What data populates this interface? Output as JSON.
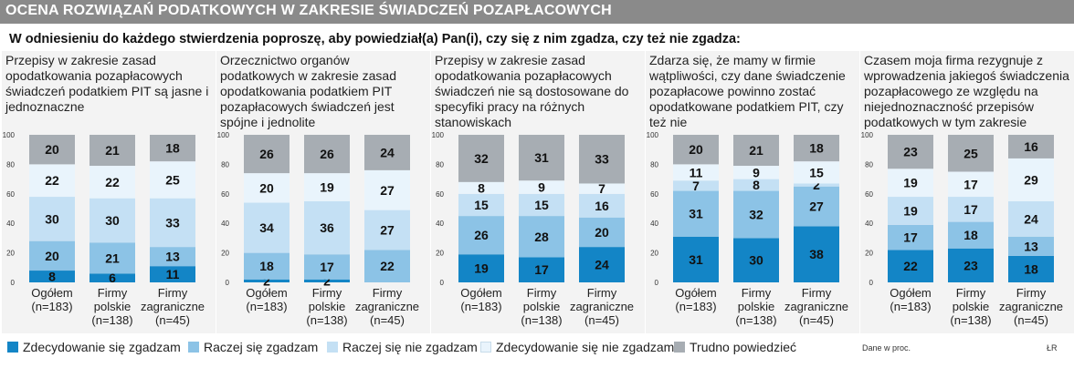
{
  "header": {
    "title": "OCENA ROZWIĄZAŃ PODATKOWYCH W ZAKRESIE ŚWIADCZEŃ POZAPŁACOWYCH",
    "question": "W odniesieniu do każdego stwierdzenia poproszę, aby powiedział(a) Pan(i), czy się z nim zgadza, czy też nie zgadza:"
  },
  "colors": {
    "header_bg": "#8a8a8a",
    "panel_bg": "#f3f3f3",
    "series": [
      "#1385c6",
      "#8cc3e6",
      "#c4e0f4",
      "#e9f4fc",
      "#a7adb3"
    ]
  },
  "legend": {
    "items": [
      "Zdecydowanie się zgadzam",
      "Raczej się zgadzam",
      "Raczej się nie zgadzam",
      "Zdecydowanie się nie zgadzam",
      "Trudno powiedzieć"
    ]
  },
  "footer": {
    "source": "Dane w proc.",
    "credit": "ŁR"
  },
  "chart_data": [
    {
      "type": "bar",
      "stacked": true,
      "title": "Przepisy w zakresie zasad opodatkowania pozapłacowych świadczeń podatkiem PIT są jasne i jednoznaczne",
      "categories": [
        "Ogółem (n=183)",
        "Firmy polskie (n=138)",
        "Firmy zagraniczne (n=45)"
      ],
      "ylim": [
        0,
        100
      ],
      "yticks": [
        0,
        20,
        40,
        60,
        80,
        100
      ],
      "series": [
        {
          "name": "Zdecydowanie się zgadzam",
          "values": [
            8,
            6,
            11
          ]
        },
        {
          "name": "Raczej się zgadzam",
          "values": [
            20,
            21,
            13
          ]
        },
        {
          "name": "Raczej się nie zgadzam",
          "values": [
            30,
            30,
            33
          ]
        },
        {
          "name": "Zdecydowanie się nie zgadzam",
          "values": [
            22,
            22,
            25
          ]
        },
        {
          "name": "Trudno powiedzieć",
          "values": [
            20,
            21,
            18
          ]
        }
      ]
    },
    {
      "type": "bar",
      "stacked": true,
      "title": "Orzecznictwo organów podatkowych w zakresie zasad opodatkowania podatkiem PIT pozapłacowych świadczeń jest spójne i jednolite",
      "categories": [
        "Ogółem (n=183)",
        "Firmy polskie (n=138)",
        "Firmy zagraniczne (n=45)"
      ],
      "ylim": [
        0,
        100
      ],
      "yticks": [
        0,
        20,
        40,
        60,
        80,
        100
      ],
      "series": [
        {
          "name": "Zdecydowanie się zgadzam",
          "values": [
            2,
            2,
            0
          ]
        },
        {
          "name": "Raczej się zgadzam",
          "values": [
            18,
            17,
            22
          ]
        },
        {
          "name": "Raczej się nie zgadzam",
          "values": [
            34,
            36,
            27
          ]
        },
        {
          "name": "Zdecydowanie się nie zgadzam",
          "values": [
            20,
            19,
            27
          ]
        },
        {
          "name": "Trudno powiedzieć",
          "values": [
            26,
            26,
            24
          ]
        }
      ]
    },
    {
      "type": "bar",
      "stacked": true,
      "title": "Przepisy w zakresie zasad opodatkowania pozapłacowych świadczeń nie są dostosowane do specyfiki pracy na różnych stanowiskach",
      "categories": [
        "Ogółem (n=183)",
        "Firmy polskie (n=138)",
        "Firmy zagraniczne (n=45)"
      ],
      "ylim": [
        0,
        100
      ],
      "yticks": [
        0,
        20,
        40,
        60,
        80,
        100
      ],
      "series": [
        {
          "name": "Zdecydowanie się zgadzam",
          "values": [
            19,
            17,
            24
          ]
        },
        {
          "name": "Raczej się zgadzam",
          "values": [
            26,
            28,
            20
          ]
        },
        {
          "name": "Raczej się nie zgadzam",
          "values": [
            15,
            15,
            16
          ]
        },
        {
          "name": "Zdecydowanie się nie zgadzam",
          "values": [
            8,
            9,
            7
          ]
        },
        {
          "name": "Trudno powiedzieć",
          "values": [
            32,
            31,
            33
          ]
        }
      ]
    },
    {
      "type": "bar",
      "stacked": true,
      "title": "Zdarza się, że mamy w firmie wątpliwości, czy dane świadczenie pozapłacowe powinno zostać opodatkowane podatkiem PIT, czy też nie",
      "categories": [
        "Ogółem (n=183)",
        "Firmy polskie (n=138)",
        "Firmy zagraniczne (n=45)"
      ],
      "ylim": [
        0,
        100
      ],
      "yticks": [
        0,
        20,
        40,
        60,
        80,
        100
      ],
      "series": [
        {
          "name": "Zdecydowanie się zgadzam",
          "values": [
            31,
            30,
            38
          ]
        },
        {
          "name": "Raczej się zgadzam",
          "values": [
            31,
            32,
            27
          ]
        },
        {
          "name": "Raczej się nie zgadzam",
          "values": [
            7,
            8,
            2
          ]
        },
        {
          "name": "Zdecydowanie się nie zgadzam",
          "values": [
            11,
            9,
            15
          ]
        },
        {
          "name": "Trudno powiedzieć",
          "values": [
            20,
            21,
            18
          ]
        }
      ]
    },
    {
      "type": "bar",
      "stacked": true,
      "title": "Czasem moja firma rezygnuje z wprowadzenia jakiegoś świadczenia pozapłacowego ze względu na niejednoznaczność przepisów podatkowych w tym zakresie",
      "categories": [
        "Ogółem (n=183)",
        "Firmy polskie (n=138)",
        "Firmy zagraniczne (n=45)"
      ],
      "ylim": [
        0,
        100
      ],
      "yticks": [
        0,
        20,
        40,
        60,
        80,
        100
      ],
      "series": [
        {
          "name": "Zdecydowanie się zgadzam",
          "values": [
            22,
            23,
            18
          ]
        },
        {
          "name": "Raczej się zgadzam",
          "values": [
            17,
            18,
            13
          ]
        },
        {
          "name": "Raczej się nie zgadzam",
          "values": [
            19,
            17,
            24
          ]
        },
        {
          "name": "Zdecydowanie się nie zgadzam",
          "values": [
            19,
            17,
            29
          ]
        },
        {
          "name": "Trudno powiedzieć",
          "values": [
            23,
            25,
            16
          ]
        }
      ]
    }
  ]
}
